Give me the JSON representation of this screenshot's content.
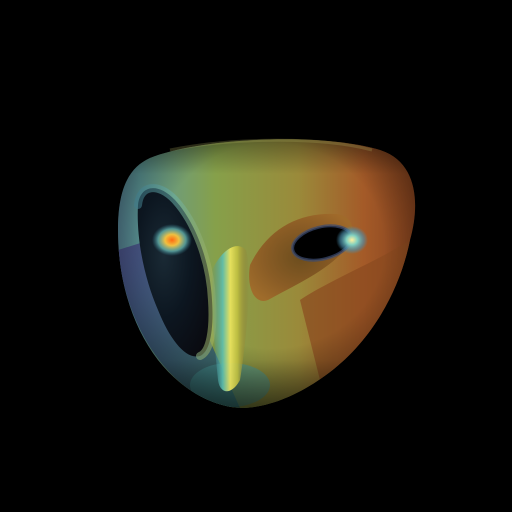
{
  "scene": {
    "background_color": "#000000",
    "subject": "rendered-3d-surface",
    "surface_colors": [
      "#7a8a3a",
      "#9c5a2a",
      "#6aa0a8",
      "#4a5a8a",
      "#e0d040",
      "#d05020",
      "#40a0c0"
    ]
  }
}
